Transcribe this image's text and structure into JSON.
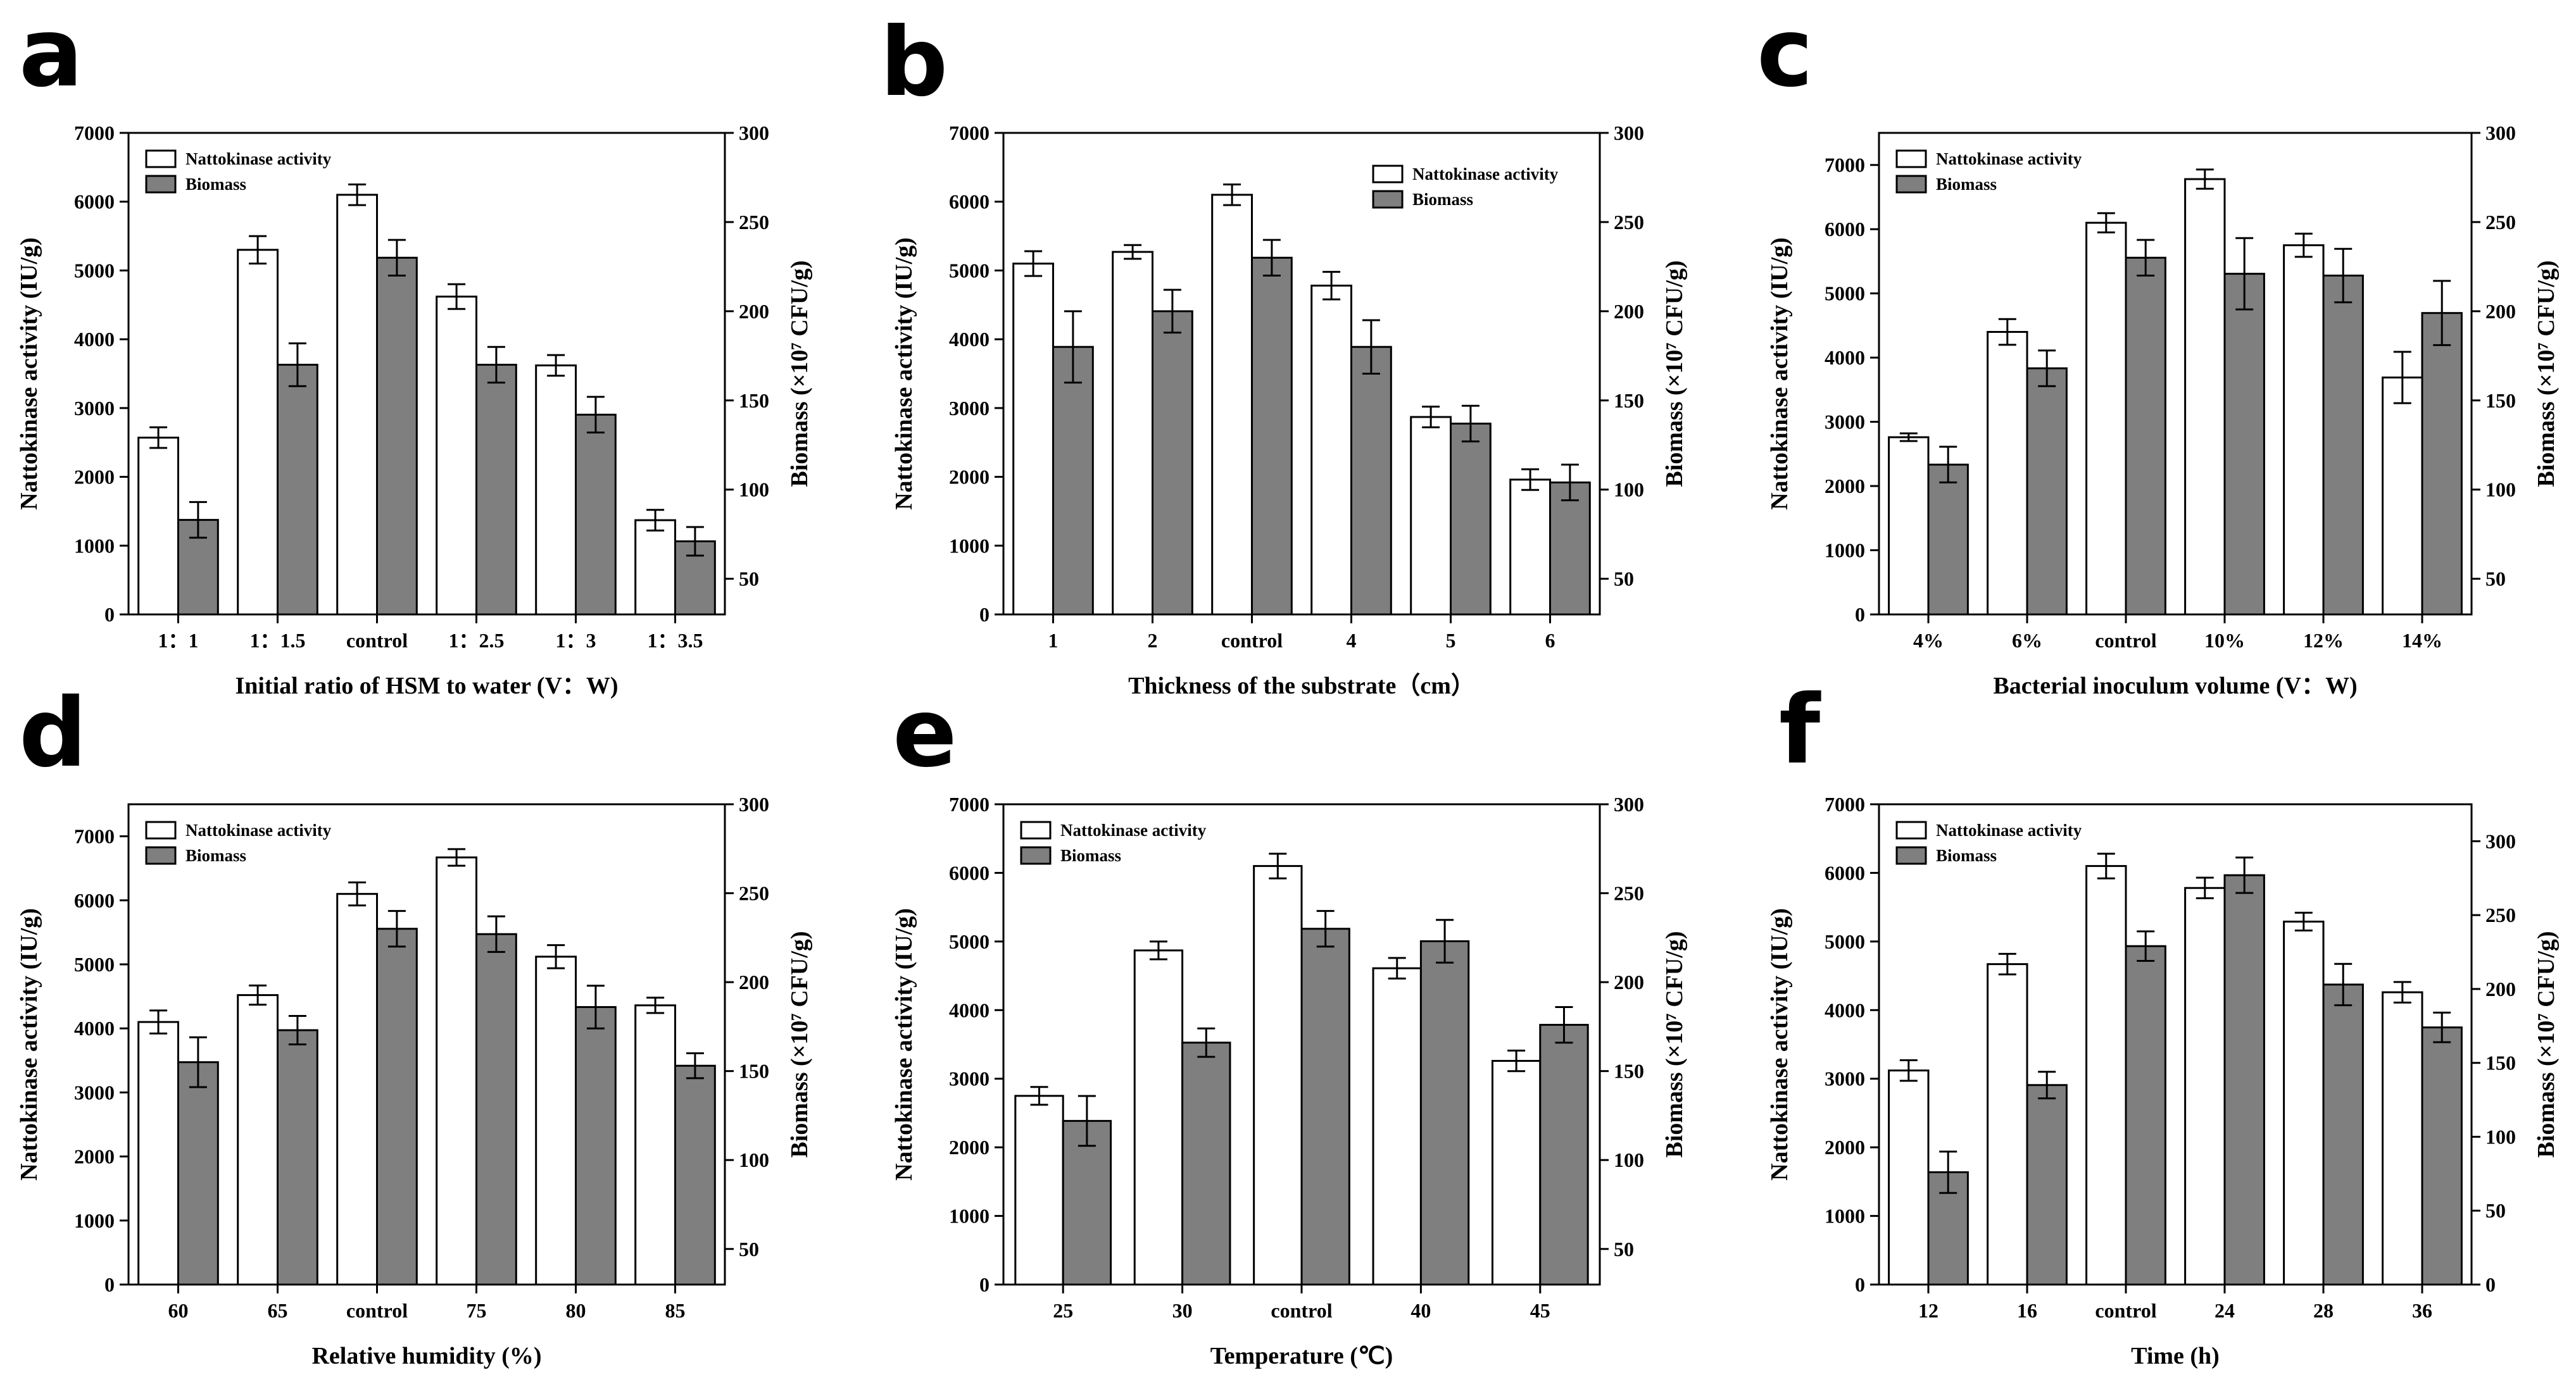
{
  "colors": {
    "activity_fill": "#ffffff",
    "biomass_fill": "#7f7f7f",
    "stroke": "#000000"
  },
  "panels": [
    {
      "letter": "a",
      "chart_data": {
        "type": "bar",
        "categories": [
          "1：1",
          "1：1.5",
          "control",
          "1：2.5",
          "1：3",
          "1：3.5"
        ],
        "xlabel": "Initial ratio of HSM to water (V：W)",
        "ylabel_left": "Nattokinase activity (IU/g)",
        "ylabel_right": "Biomass (×10⁷ CFU/g)",
        "left_axis": {
          "min": 0,
          "max": 7000,
          "ticks": [
            0,
            1000,
            2000,
            3000,
            4000,
            5000,
            6000,
            7000
          ]
        },
        "right_axis": {
          "min": 30,
          "max": 300,
          "ticks": [
            50,
            100,
            150,
            200,
            250,
            300
          ]
        },
        "legend_position": "top-left",
        "series": [
          {
            "name": "Nattokinase activity",
            "axis": "left",
            "values": [
              2570,
              5300,
              6100,
              4620,
              3620,
              1370
            ],
            "errors": [
              150,
              200,
              150,
              180,
              150,
              150
            ]
          },
          {
            "name": "Biomass",
            "axis": "right",
            "values": [
              83,
              170,
              230,
              170,
              142,
              71
            ],
            "errors": [
              10,
              12,
              10,
              10,
              10,
              8
            ]
          }
        ]
      }
    },
    {
      "letter": "b",
      "chart_data": {
        "type": "bar",
        "categories": [
          "1",
          "2",
          "control",
          "4",
          "5",
          "6"
        ],
        "xlabel": "Thickness of the substrate（cm）",
        "ylabel_left": "Nattokinase activity (IU/g)",
        "ylabel_right": "Biomass (×10⁷ CFU/g)",
        "left_axis": {
          "min": 0,
          "max": 7000,
          "ticks": [
            0,
            1000,
            2000,
            3000,
            4000,
            5000,
            6000,
            7000
          ]
        },
        "right_axis": {
          "min": 30,
          "max": 300,
          "ticks": [
            50,
            100,
            150,
            200,
            250,
            300
          ]
        },
        "legend_position": "top-right",
        "series": [
          {
            "name": "Nattokinase activity",
            "axis": "left",
            "values": [
              5100,
              5270,
              6100,
              4780,
              2870,
              1960
            ],
            "errors": [
              180,
              100,
              150,
              200,
              150,
              150
            ]
          },
          {
            "name": "Biomass",
            "axis": "right",
            "values": [
              180,
              200,
              230,
              180,
              137,
              104
            ],
            "errors": [
              20,
              12,
              10,
              15,
              10,
              10
            ]
          }
        ]
      }
    },
    {
      "letter": "c",
      "chart_data": {
        "type": "bar",
        "categories": [
          "4%",
          "6%",
          "control",
          "10%",
          "12%",
          "14%"
        ],
        "xlabel": "Bacterial inoculum volume (V：W)",
        "ylabel_left": "Nattokinase activity (IU/g)",
        "ylabel_right": "Biomass (×10⁷ CFU/g)",
        "left_axis": {
          "min": 0,
          "max": 7500,
          "ticks": [
            0,
            1000,
            2000,
            3000,
            4000,
            5000,
            6000,
            7000
          ]
        },
        "right_axis": {
          "min": 30,
          "max": 300,
          "ticks": [
            50,
            100,
            150,
            200,
            250,
            300
          ]
        },
        "legend_position": "top-left",
        "series": [
          {
            "name": "Nattokinase activity",
            "axis": "left",
            "values": [
              2760,
              4400,
              6100,
              6780,
              5750,
              3690
            ],
            "errors": [
              60,
              200,
              150,
              150,
              180,
              400
            ]
          },
          {
            "name": "Biomass",
            "axis": "right",
            "values": [
              114,
              168,
              230,
              221,
              220,
              199
            ],
            "errors": [
              10,
              10,
              10,
              20,
              15,
              18
            ]
          }
        ]
      }
    },
    {
      "letter": "d",
      "chart_data": {
        "type": "bar",
        "categories": [
          "60",
          "65",
          "control",
          "75",
          "80",
          "85"
        ],
        "xlabel": "Relative humidity (%)",
        "ylabel_left": "Nattokinase activity (IU/g)",
        "ylabel_right": "Biomass (×10⁷ CFU/g)",
        "left_axis": {
          "min": 0,
          "max": 7500,
          "ticks": [
            0,
            1000,
            2000,
            3000,
            4000,
            5000,
            6000,
            7000
          ]
        },
        "right_axis": {
          "min": 30,
          "max": 300,
          "ticks": [
            50,
            100,
            150,
            200,
            250,
            300
          ]
        },
        "legend_position": "top-left",
        "series": [
          {
            "name": "Nattokinase activity",
            "axis": "left",
            "values": [
              4100,
              4520,
              6100,
              6670,
              5120,
              4360
            ],
            "errors": [
              180,
              150,
              180,
              130,
              180,
              120
            ]
          },
          {
            "name": "Biomass",
            "axis": "right",
            "values": [
              155,
              173,
              230,
              227,
              186,
              153
            ],
            "errors": [
              14,
              8,
              10,
              10,
              12,
              7
            ]
          }
        ]
      }
    },
    {
      "letter": "e",
      "chart_data": {
        "type": "bar",
        "categories": [
          "25",
          "30",
          "control",
          "40",
          "45"
        ],
        "xlabel": "Temperature (℃)",
        "ylabel_left": "Nattokinase activity (IU/g)",
        "ylabel_right": "Biomass (×10⁷ CFU/g)",
        "left_axis": {
          "min": 0,
          "max": 7000,
          "ticks": [
            0,
            1000,
            2000,
            3000,
            4000,
            5000,
            6000,
            7000
          ]
        },
        "right_axis": {
          "min": 30,
          "max": 300,
          "ticks": [
            50,
            100,
            150,
            200,
            250,
            300
          ]
        },
        "legend_position": "top-left",
        "series": [
          {
            "name": "Nattokinase activity",
            "axis": "left",
            "values": [
              2750,
              4870,
              6100,
              4610,
              3260
            ],
            "errors": [
              130,
              130,
              180,
              150,
              150
            ]
          },
          {
            "name": "Biomass",
            "axis": "right",
            "values": [
              122,
              166,
              230,
              223,
              176
            ],
            "errors": [
              14,
              8,
              10,
              12,
              10
            ]
          }
        ]
      }
    },
    {
      "letter": "f",
      "chart_data": {
        "type": "bar",
        "categories": [
          "12",
          "16",
          "control",
          "24",
          "28",
          "36"
        ],
        "xlabel": "Time (h)",
        "ylabel_left": "Nattokinase activity (IU/g)",
        "ylabel_right": "Biomass (×10⁷ CFU/g)",
        "left_axis": {
          "min": 0,
          "max": 7000,
          "ticks": [
            0,
            1000,
            2000,
            3000,
            4000,
            5000,
            6000,
            7000
          ]
        },
        "right_axis": {
          "min": 0,
          "max": 325,
          "ticks": [
            0,
            50,
            100,
            150,
            200,
            250,
            300
          ]
        },
        "legend_position": "top-left",
        "series": [
          {
            "name": "Nattokinase activity",
            "axis": "left",
            "values": [
              3120,
              4670,
              6100,
              5780,
              5290,
              4260
            ],
            "errors": [
              150,
              150,
              180,
              150,
              130,
              150
            ]
          },
          {
            "name": "Biomass",
            "axis": "right",
            "values": [
              76,
              135,
              229,
              277,
              203,
              174
            ],
            "errors": [
              14,
              9,
              10,
              12,
              14,
              10
            ]
          }
        ]
      }
    }
  ]
}
